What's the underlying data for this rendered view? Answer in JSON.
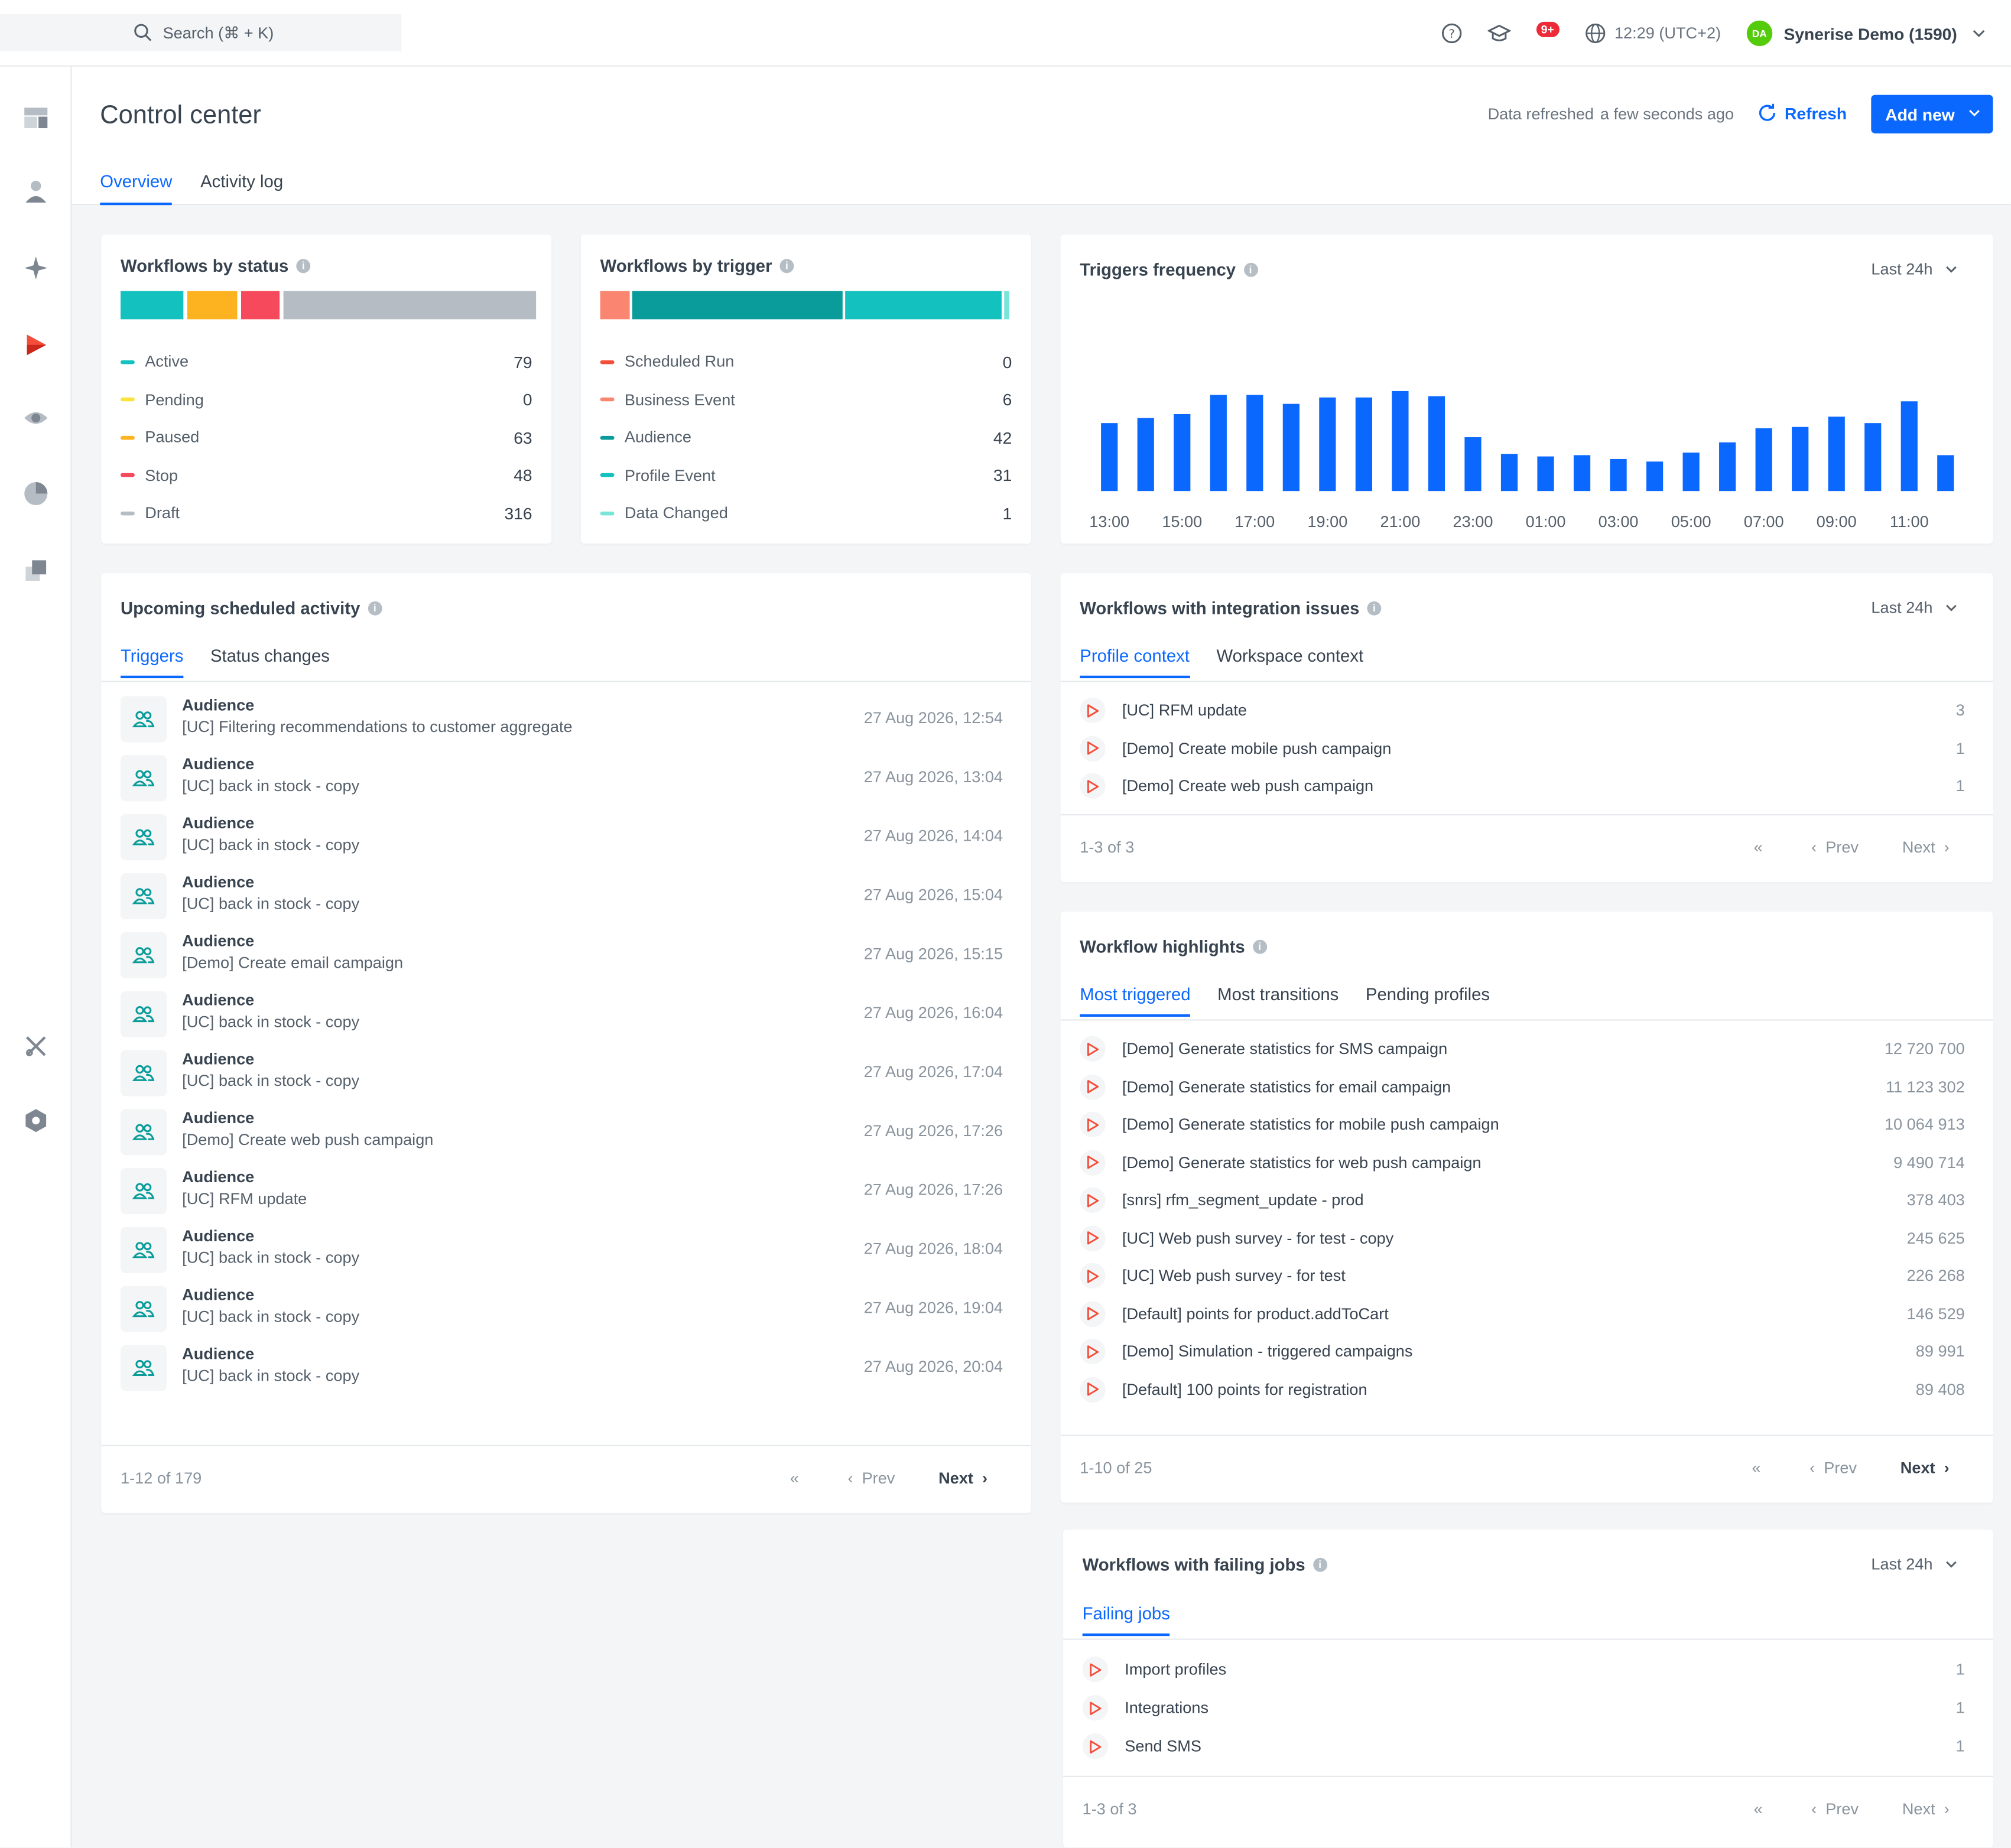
{
  "topbar": {
    "search_placeholder": "Search (⌘ + K)",
    "notifications_badge": "9+",
    "time": "12:29 (UTC+2)",
    "user_initials": "DA",
    "user_name": "Synerise Demo (1590)"
  },
  "sidebar": {
    "items": [
      "dashboard-icon",
      "profiles-icon",
      "ai-icon",
      "automation-icon",
      "analytics-eye-icon",
      "pie-chart-icon",
      "data-management-icon",
      "tools-icon",
      "settings-hexagon-icon"
    ]
  },
  "page": {
    "title": "Control center",
    "data_refreshed_label": "Data refreshed",
    "data_refreshed_value": "a few seconds ago",
    "refresh_label": "Refresh",
    "add_new_label": "Add new",
    "tabs": [
      "Overview",
      "Activity log"
    ]
  },
  "workflows_by_status": {
    "title": "Workflows by status",
    "items": [
      {
        "label": "Active",
        "value": "79",
        "color": "#13c1be"
      },
      {
        "label": "Pending",
        "value": "0",
        "color": "#fce23c"
      },
      {
        "label": "Paused",
        "value": "63",
        "color": "#fdb220"
      },
      {
        "label": "Stop",
        "value": "48",
        "color": "#f6495b"
      },
      {
        "label": "Draft",
        "value": "316",
        "color": "#b5bcc4"
      }
    ]
  },
  "workflows_by_trigger": {
    "title": "Workflows by trigger",
    "items": [
      {
        "label": "Scheduled Run",
        "value": "0",
        "color": "#f44e3b"
      },
      {
        "label": "Business Event",
        "value": "6",
        "color": "#fa8672"
      },
      {
        "label": "Audience",
        "value": "42",
        "color": "#099c9a"
      },
      {
        "label": "Profile Event",
        "value": "31",
        "color": "#13c1be"
      },
      {
        "label": "Data Changed",
        "value": "1",
        "color": "#77e6d8"
      }
    ]
  },
  "triggers_frequency": {
    "title": "Triggers frequency",
    "range": "Last 24h"
  },
  "chart_data": {
    "type": "bar",
    "categories": [
      "13:00",
      "14:00",
      "15:00",
      "16:00",
      "17:00",
      "18:00",
      "19:00",
      "20:00",
      "21:00",
      "22:00",
      "23:00",
      "00:00",
      "01:00",
      "02:00",
      "03:00",
      "04:00",
      "05:00",
      "06:00",
      "07:00",
      "08:00",
      "09:00",
      "10:00",
      "11:00",
      "12:00"
    ],
    "x_tick_labels": [
      "13:00",
      "15:00",
      "17:00",
      "19:00",
      "21:00",
      "23:00",
      "01:00",
      "03:00",
      "05:00",
      "07:00",
      "09:00",
      "11:00"
    ],
    "values": [
      53,
      57,
      60,
      75,
      75,
      68,
      73,
      73,
      78,
      74,
      42,
      29,
      27,
      28,
      25,
      23,
      30,
      38,
      49,
      50,
      58,
      53,
      70,
      28
    ],
    "color": "#0b68ff"
  },
  "scheduled": {
    "title": "Upcoming scheduled activity",
    "tabs": [
      "Triggers",
      "Status changes"
    ],
    "rows": [
      {
        "type": "Audience",
        "name": "[UC] Filtering recommendations to customer aggregate",
        "date": "27 Aug 2026, 12:54"
      },
      {
        "type": "Audience",
        "name": "[UC] back in stock - copy",
        "date": "27 Aug 2026, 13:04"
      },
      {
        "type": "Audience",
        "name": "[UC] back in stock - copy",
        "date": "27 Aug 2026, 14:04"
      },
      {
        "type": "Audience",
        "name": "[UC] back in stock - copy",
        "date": "27 Aug 2026, 15:04"
      },
      {
        "type": "Audience",
        "name": "[Demo] Create email campaign",
        "date": "27 Aug 2026, 15:15"
      },
      {
        "type": "Audience",
        "name": "[UC] back in stock - copy",
        "date": "27 Aug 2026, 16:04"
      },
      {
        "type": "Audience",
        "name": "[UC] back in stock - copy",
        "date": "27 Aug 2026, 17:04"
      },
      {
        "type": "Audience",
        "name": "[Demo] Create web push campaign",
        "date": "27 Aug 2026, 17:26"
      },
      {
        "type": "Audience",
        "name": "[UC] RFM update",
        "date": "27 Aug 2026, 17:26"
      },
      {
        "type": "Audience",
        "name": "[UC] back in stock - copy",
        "date": "27 Aug 2026, 18:04"
      },
      {
        "type": "Audience",
        "name": "[UC] back in stock - copy",
        "date": "27 Aug 2026, 19:04"
      },
      {
        "type": "Audience",
        "name": "[UC] back in stock - copy",
        "date": "27 Aug 2026, 20:04"
      }
    ],
    "count": "1-12 of 179",
    "prev": "Prev",
    "next": "Next"
  },
  "integration": {
    "title": "Workflows with integration issues",
    "range": "Last 24h",
    "tabs": [
      "Profile context",
      "Workspace context"
    ],
    "rows": [
      {
        "name": "[UC] RFM update",
        "value": "3"
      },
      {
        "name": "[Demo] Create mobile push campaign",
        "value": "1"
      },
      {
        "name": "[Demo] Create web push campaign",
        "value": "1"
      }
    ],
    "count": "1-3 of 3",
    "prev": "Prev",
    "next": "Next"
  },
  "highlights": {
    "title": "Workflow highlights",
    "tabs": [
      "Most triggered",
      "Most transitions",
      "Pending profiles"
    ],
    "rows": [
      {
        "name": "[Demo] Generate statistics for SMS campaign",
        "value": "12 720 700"
      },
      {
        "name": "[Demo] Generate statistics for email campaign",
        "value": "11 123 302"
      },
      {
        "name": "[Demo] Generate statistics for mobile push campaign",
        "value": "10 064 913"
      },
      {
        "name": "[Demo] Generate statistics for web push campaign",
        "value": "9 490 714"
      },
      {
        "name": "[snrs] rfm_segment_update - prod",
        "value": "378 403"
      },
      {
        "name": "[UC] Web push survey - for test - copy",
        "value": "245 625"
      },
      {
        "name": "[UC] Web push survey - for test",
        "value": "226 268"
      },
      {
        "name": "[Default] points for product.addToCart",
        "value": "146 529"
      },
      {
        "name": "[Demo] Simulation - triggered campaigns",
        "value": "89 991"
      },
      {
        "name": "[Default] 100 points for registration",
        "value": "89 408"
      }
    ],
    "count": "1-10 of 25",
    "prev": "Prev",
    "next": "Next"
  },
  "failing": {
    "title": "Workflows with failing jobs",
    "range": "Last 24h",
    "tabs": [
      "Failing jobs"
    ],
    "rows": [
      {
        "name": "Import profiles",
        "value": "1"
      },
      {
        "name": "Integrations",
        "value": "1"
      },
      {
        "name": "Send SMS",
        "value": "1"
      }
    ],
    "count": "1-3 of 3",
    "prev": "Prev",
    "next": "Next"
  }
}
